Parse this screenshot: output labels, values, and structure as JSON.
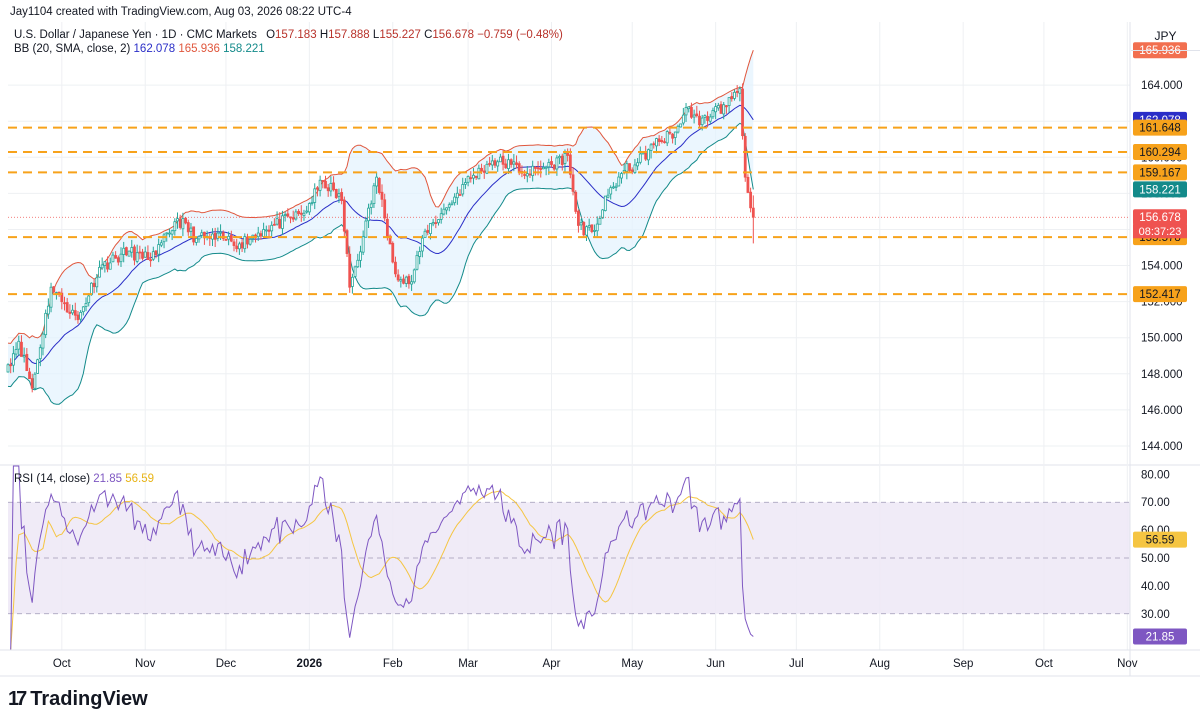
{
  "header": {
    "credit": "Jay1104 created with TradingView.com, Aug 03, 2026 08:22 UTC-4",
    "symbol": "U.S. Dollar / Japanese Yen · 1D · CMC Markets",
    "ohlc": {
      "o_label": "O",
      "o": "157.183",
      "h_label": "H",
      "h": "157.888",
      "l_label": "L",
      "l": "155.227",
      "c_label": "C",
      "c": "156.678",
      "change": "−0.759 (−0.48%)"
    },
    "bb_label": "BB (20, SMA, close, 2)",
    "bb_values": {
      "basis": "162.078",
      "upper": "165.936",
      "lower": "158.221"
    },
    "rsi_label": "RSI (14, close)",
    "rsi_values": {
      "rsi": "21.85",
      "ma": "56.59"
    }
  },
  "currency": "JPY",
  "branding": {
    "logo_glyph": "17",
    "name": "TradingView"
  },
  "colors": {
    "candle_up": "#26a69a",
    "candle_down": "#ef5350",
    "bb_upper": "#e0573d",
    "bb_basis": "#2a2ec7",
    "bb_lower": "#138a8a",
    "bb_fill": "#e3f2fd",
    "level_line": "#f7a21b",
    "rsi_line": "#7e57c2",
    "rsi_ma": "#f5c542",
    "rsi_band": "#ede7f6",
    "last_price": "#ef5350"
  },
  "chart_data": [
    {
      "type": "candlestick",
      "title": "U.S. Dollar / Japanese Yen · 1D · CMC Markets",
      "ylim": [
        143,
        167.5
      ],
      "y_ticks": [
        144,
        146,
        148,
        150,
        152,
        154,
        156,
        158,
        160,
        162,
        164
      ],
      "y_tick_labels": [
        "144.000",
        "146.000",
        "148.000",
        "150.000",
        "152.000",
        "154.000",
        "156.000",
        "158.000",
        "160.000",
        "162.000",
        "164.000"
      ],
      "x_ticks": [
        "Oct",
        "Nov",
        "Dec",
        "2026",
        "Feb",
        "Mar",
        "Apr",
        "May",
        "Jun",
        "Jul",
        "Aug",
        "Sep",
        "Oct",
        "Nov"
      ],
      "x_tick_days": [
        20,
        51,
        81,
        112,
        143,
        171,
        202,
        232,
        263,
        293,
        324,
        355,
        385,
        416
      ],
      "grid": true,
      "anchors_day_close": [
        [
          0,
          148.5
        ],
        [
          4,
          149.8
        ],
        [
          9,
          147.2
        ],
        [
          16,
          152.8
        ],
        [
          21,
          151.9
        ],
        [
          26,
          151.0
        ],
        [
          34,
          153.9
        ],
        [
          45,
          154.8
        ],
        [
          50,
          154.4
        ],
        [
          55,
          154.6
        ],
        [
          63,
          156.6
        ],
        [
          70,
          155.5
        ],
        [
          80,
          155.5
        ],
        [
          86,
          155.2
        ],
        [
          95,
          156.0
        ],
        [
          110,
          156.9
        ],
        [
          117,
          158.7
        ],
        [
          124,
          157.6
        ],
        [
          127,
          152.8
        ],
        [
          132,
          155.6
        ],
        [
          137,
          158.9
        ],
        [
          142,
          155.2
        ],
        [
          145,
          153.2
        ],
        [
          150,
          153.1
        ],
        [
          155,
          155.9
        ],
        [
          163,
          157.2
        ],
        [
          170,
          158.6
        ],
        [
          180,
          159.8
        ],
        [
          187,
          159.6
        ],
        [
          193,
          159.1
        ],
        [
          202,
          159.6
        ],
        [
          208,
          160.1
        ],
        [
          211,
          157.0
        ],
        [
          214,
          155.7
        ],
        [
          219,
          156.3
        ],
        [
          223,
          157.9
        ],
        [
          228,
          159.1
        ],
        [
          234,
          159.7
        ],
        [
          240,
          160.7
        ],
        [
          248,
          161.4
        ],
        [
          253,
          162.8
        ],
        [
          257,
          161.8
        ],
        [
          262,
          162.6
        ],
        [
          267,
          162.8
        ],
        [
          270,
          163.6
        ],
        [
          272,
          163.8
        ],
        [
          273,
          161.2
        ],
        [
          274,
          158.9
        ],
        [
          276,
          157.2
        ],
        [
          277,
          156.678
        ]
      ],
      "levels": [
        161.648,
        160.294,
        159.167,
        155.578,
        152.417
      ],
      "level_labels": [
        "161.648",
        "160.294",
        "159.167",
        "155.578",
        "152.417"
      ],
      "series": [
        {
          "name": "BB upper",
          "last": 165.936
        },
        {
          "name": "BB basis",
          "last": 162.078
        },
        {
          "name": "BB lower",
          "last": 158.221
        }
      ],
      "last_price": 156.678,
      "last_price_label": "156.678",
      "countdown": "08:37:23"
    },
    {
      "type": "line",
      "title": "RSI (14, close)",
      "ylim": [
        17,
        83
      ],
      "y_ticks": [
        30,
        40,
        50,
        60,
        70,
        80
      ],
      "y_tick_labels": [
        "30.00",
        "40.00",
        "50.00",
        "60.00",
        "70.00",
        "80.00"
      ],
      "bands": [
        30,
        70
      ],
      "midline": 50,
      "rsi_last": 21.85,
      "ma_last": 56.59,
      "rsi_last_label": "21.85",
      "ma_last_label": "56.59"
    }
  ]
}
